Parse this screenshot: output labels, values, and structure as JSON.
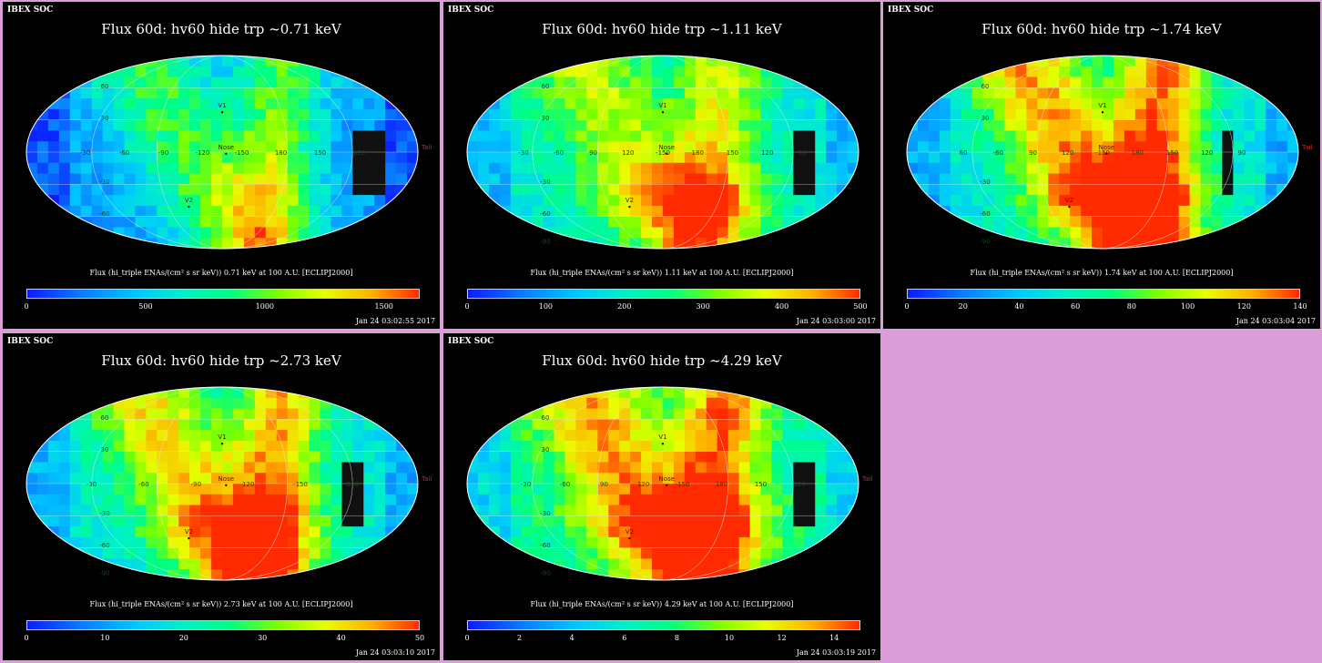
{
  "figure": {
    "panel_label": "IBEX SOC",
    "colorbar_title": "Flux (hi_triple ENAs/(cm² s sr keV))",
    "projection": "ECLIPJ2000",
    "distance": "100 A.U."
  },
  "chart_data": [
    {
      "type": "heatmap",
      "title": "Flux   60d: hv60 hide trp ~0.71 keV",
      "energy": "0.71 keV",
      "colorbar_label": "Flux (hi_triple ENAs/(cm² s sr keV))  0.71 keV at 100 A.U. [ECLIPJ2000]",
      "colorbar_range": [
        0,
        1650
      ],
      "colorbar_ticks": [
        "0",
        "500",
        "1000",
        "1500"
      ],
      "colorbar_tick_values": [
        0,
        500,
        1000,
        1500
      ],
      "timestamp": "Jan 24 03:02:55 2017",
      "markers": [
        "V1",
        "V2",
        "Nose",
        "Tail"
      ],
      "lon_labels": [
        "-30",
        "-60",
        "-90",
        "-120",
        "-150",
        "180",
        "150",
        "120"
      ],
      "lat_labels": [
        "60",
        "30",
        "-30",
        "-60"
      ]
    },
    {
      "type": "heatmap",
      "title": "Flux   60d: hv60 hide trp ~1.11 keV",
      "energy": "1.11 keV",
      "colorbar_label": "Flux (hi_triple ENAs/(cm² s sr keV))  1.11 keV at 100 A.U. [ECLIPJ2000]",
      "colorbar_range": [
        0,
        500
      ],
      "colorbar_ticks": [
        "0",
        "100",
        "200",
        "300",
        "400",
        "500"
      ],
      "colorbar_tick_values": [
        0,
        100,
        200,
        300,
        400,
        500
      ],
      "timestamp": "Jan 24 03:03:00 2017",
      "markers": [
        "V1",
        "V2",
        "Nose"
      ],
      "lon_labels": [
        "-30",
        "-60",
        "90",
        "120",
        "-150",
        "180",
        "150",
        "120",
        "90"
      ],
      "lat_labels": [
        "60",
        "30",
        "-30",
        "-60",
        "-90"
      ]
    },
    {
      "type": "heatmap",
      "title": "Flux   60d: hv60 hide trp ~1.74 keV",
      "energy": "1.74 keV",
      "colorbar_label": "Flux (hi_triple ENAs/(cm² s sr keV))  1.74 keV at 100 A.U. [ECLIPJ2000]",
      "colorbar_range": [
        0,
        140
      ],
      "colorbar_ticks": [
        "0",
        "20",
        "40",
        "60",
        "80",
        "100",
        "120",
        "140"
      ],
      "colorbar_tick_values": [
        0,
        20,
        40,
        60,
        80,
        100,
        120,
        140
      ],
      "timestamp": "Jan 24 03:03:04 2017",
      "markers": [
        "V1",
        "V2",
        "Nose",
        "Tail"
      ],
      "lon_labels": [
        "60",
        "-60",
        "90",
        "120",
        "-150",
        "180",
        "150",
        "120",
        "90"
      ],
      "lat_labels": [
        "60",
        "30",
        "-30",
        "-60",
        "-90"
      ]
    },
    {
      "type": "heatmap",
      "title": "Flux   60d: hv60 hide trp ~2.73 keV",
      "energy": "2.73 keV",
      "colorbar_label": "Flux (hi_triple ENAs/(cm² s sr keV))  2.73 keV at 100 A.U. [ECLIPJ2000]",
      "colorbar_range": [
        0,
        50
      ],
      "colorbar_ticks": [
        "0",
        "10",
        "20",
        "30",
        "40",
        "50"
      ],
      "colorbar_tick_values": [
        0,
        10,
        20,
        30,
        40,
        50
      ],
      "timestamp": "Jan 24 03:03:10 2017",
      "markers": [
        "V1",
        "V2",
        "Nose",
        "Tail"
      ],
      "lon_labels": [
        "-30",
        "-60",
        "-90",
        "120",
        "-150",
        "180"
      ],
      "lat_labels": [
        "60",
        "30",
        "-30",
        "-60",
        "-90"
      ]
    },
    {
      "type": "heatmap",
      "title": "Flux   60d: hv60 hide trp ~4.29 keV",
      "energy": "4.29 keV",
      "colorbar_label": "Flux (hi_triple ENAs/(cm² s sr keV))  4.29 keV at 100 A.U. [ECLIPJ2000]",
      "colorbar_range": [
        0,
        15
      ],
      "colorbar_ticks": [
        "0",
        "2",
        "4",
        "6",
        "8",
        "10",
        "12",
        "14"
      ],
      "colorbar_tick_values": [
        0,
        2,
        4,
        6,
        8,
        10,
        12,
        14
      ],
      "timestamp": "Jan 24 03:03:19 2017",
      "markers": [
        "V1",
        "V2",
        "Nose",
        "Tail"
      ],
      "lon_labels": [
        "-30",
        "-60",
        "90",
        "120",
        "-150",
        "180",
        "150",
        "120"
      ],
      "lat_labels": [
        "60",
        "30",
        "-30",
        "-60",
        "-90"
      ]
    }
  ]
}
